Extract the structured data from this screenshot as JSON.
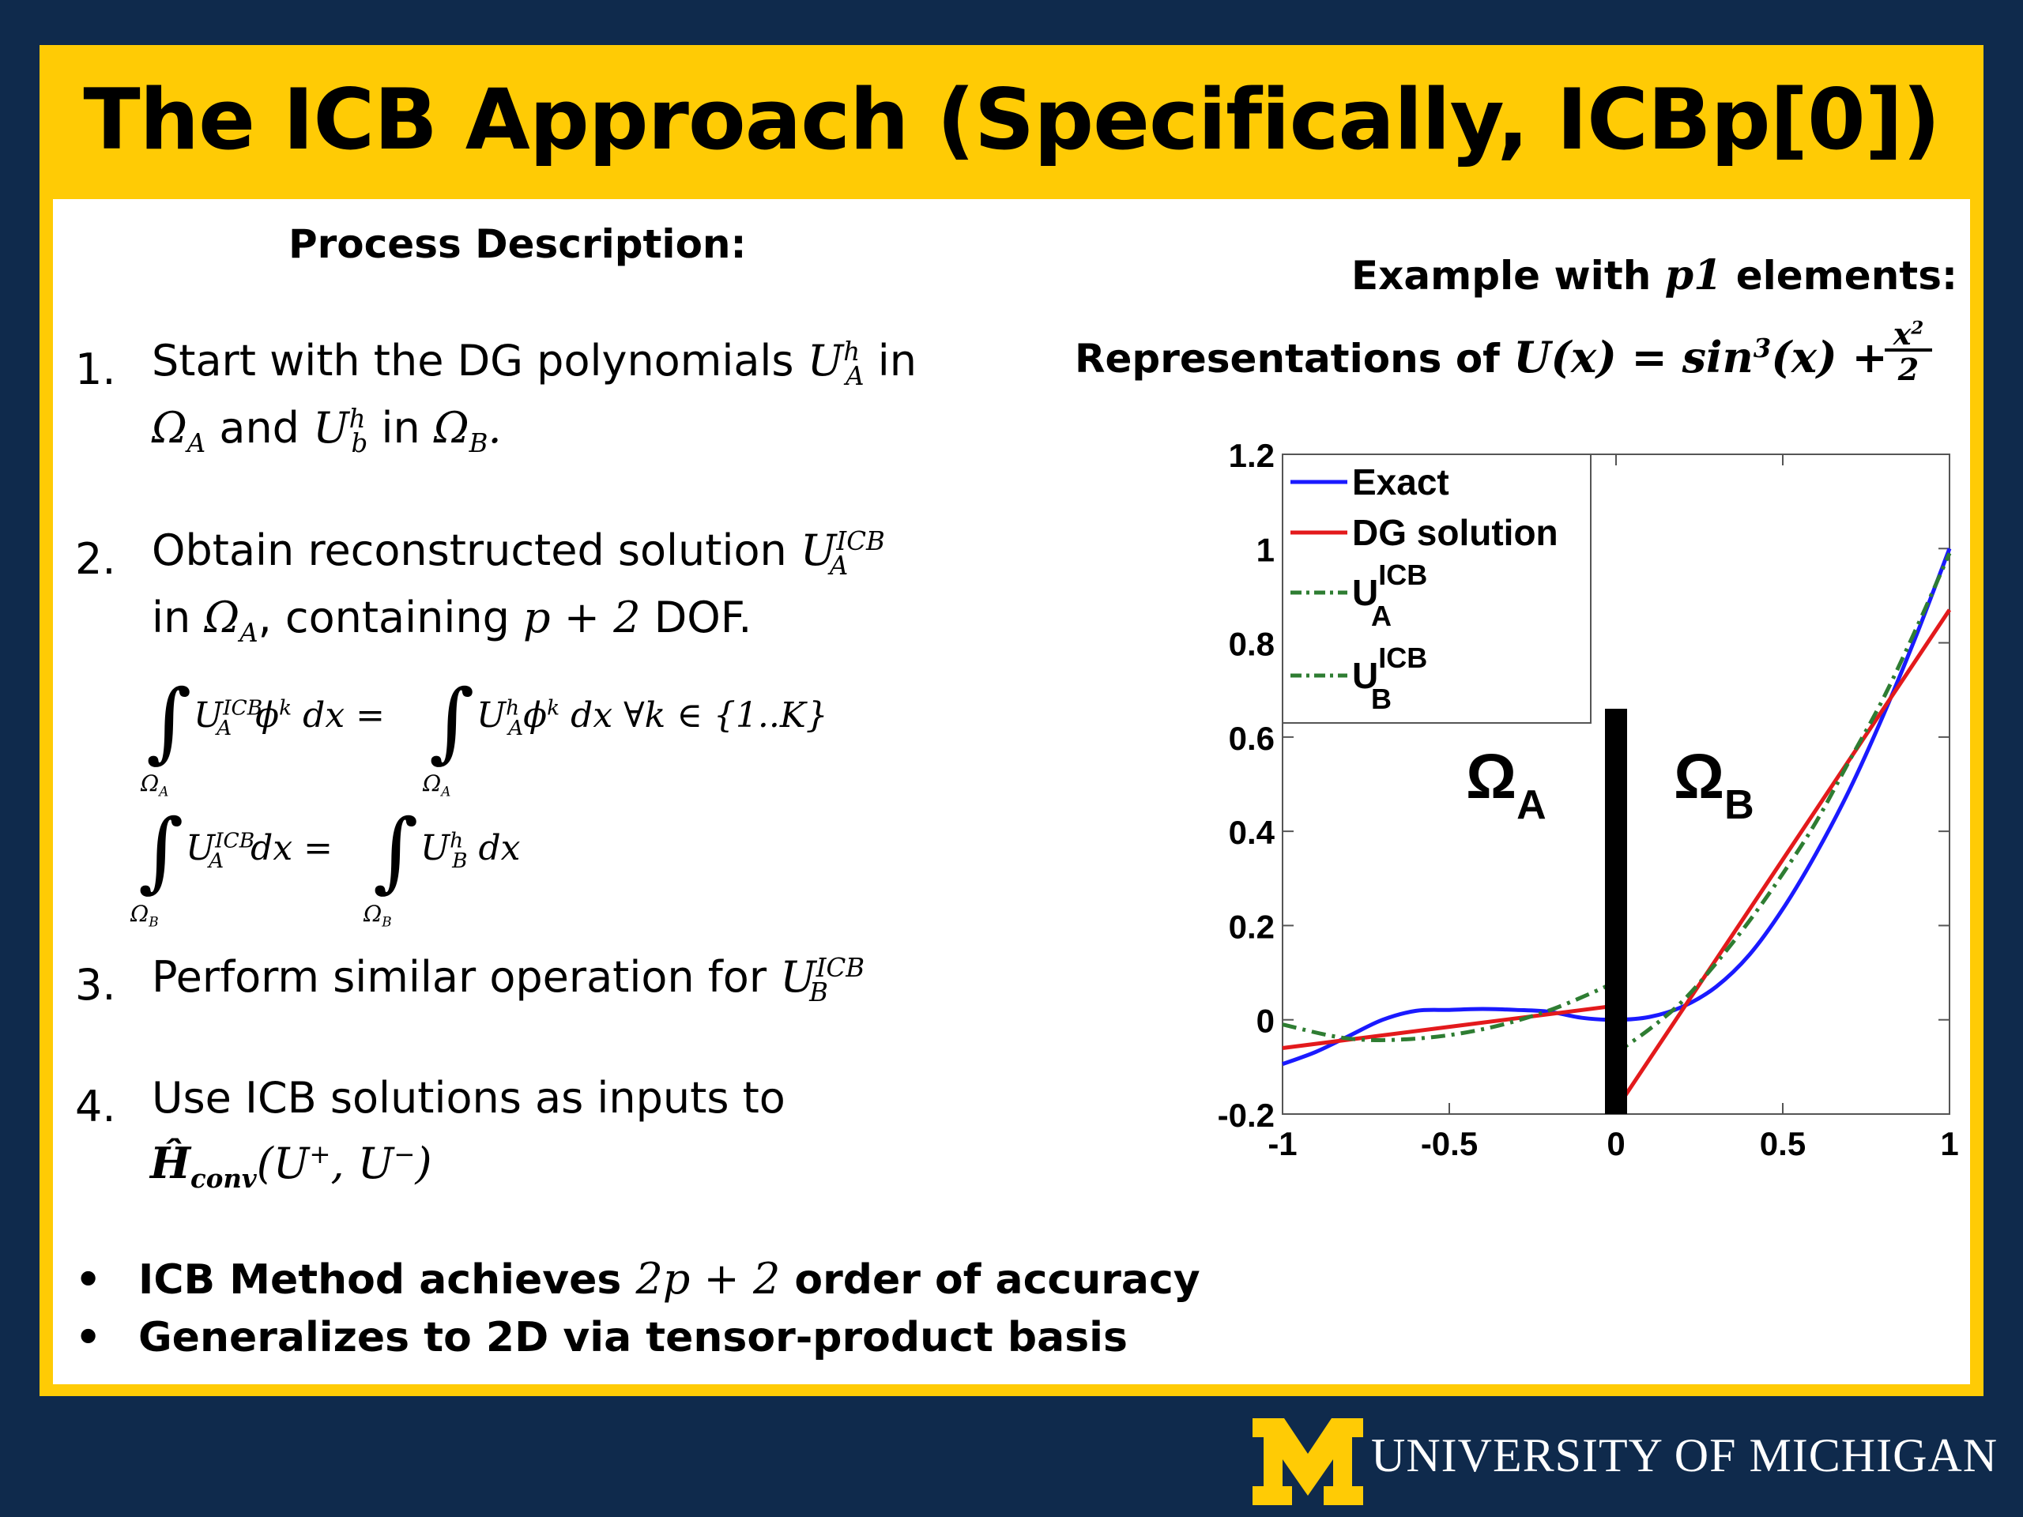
{
  "title": "The ICB Approach (Specifically, ICBp[0])",
  "left": {
    "heading": "Process Description:",
    "steps": [
      {
        "num": "1.",
        "line1": "Start with the DG polynomials",
        "line1_tail": "in",
        "line2_mid": "and",
        "line2_tail": "in"
      },
      {
        "num": "2.",
        "line1": "Obtain reconstructed solution",
        "line2_head": "in",
        "line2_mid": ", containing",
        "line2_tail": "DOF."
      },
      {
        "num": "3.",
        "line1": "Perform similar operation for"
      },
      {
        "num": "4.",
        "line1": "Use ICB solutions as inputs to"
      }
    ],
    "math": {
      "s1_a": "U",
      "s1_a_sup": "h",
      "s1_a_sub": "A",
      "s1_b": "Ω",
      "s1_b_sub": "A",
      "s1_c": "U",
      "s1_c_sup": "h",
      "s1_c_sub": "b",
      "s1_d": "Ω",
      "s1_d_sub": "B",
      "s1_end": ".",
      "s2_a": "U",
      "s2_a_sup": "ICB",
      "s2_a_sub": "A",
      "s2_b": "Ω",
      "s2_b_sub": "A",
      "s2_c": "p + 2",
      "eq1_lhs": "U",
      "eq1_lhs_sup": "ICB",
      "eq1_lhs_sub": "A",
      "eq1_phi": "ϕ",
      "eq1_phi_sup": "k",
      "eq1_dx": "dx =",
      "eq1_rhs": "U",
      "eq1_rhs_sup": "h",
      "eq1_rhs_sub": "A",
      "eq1_rhs_tail": "dx   ∀k ∈ {1..K}",
      "eq1_lim": "Ω",
      "eq1_lim_sub": "A",
      "eq2_lhs": "U",
      "eq2_lhs_sup": "ICB",
      "eq2_lhs_sub": "A",
      "eq2_dx": "dx =",
      "eq2_rhs": "U",
      "eq2_rhs_sup": "h",
      "eq2_rhs_sub": "B",
      "eq2_rhs_tail": "dx",
      "eq2_lim": "Ω",
      "eq2_lim_sub": "B",
      "s3_a": "U",
      "s3_a_sup": "ICB",
      "s3_a_sub": "B",
      "s4_H": "Ĥ",
      "s4_H_sub": "conv",
      "s4_args": "(U",
      "s4_plus": "+",
      "s4_comma": ", U",
      "s4_minus": "−",
      "s4_close": ")",
      "integral": "∫"
    },
    "bullets": [
      {
        "dot": "•",
        "pre": "ICB Method achieves",
        "math": "2p + 2",
        "post": "order of accuracy"
      },
      {
        "dot": "•",
        "pre": "Generalizes to 2D via tensor-product basis"
      }
    ]
  },
  "right": {
    "example_pre": "Example with",
    "example_math": "p1",
    "example_post": "elements:",
    "repr_pre": "Representations of",
    "repr_math": "U(x) = sin",
    "repr_sup": "3",
    "repr_tail": "(x) +",
    "frac_num": "x",
    "frac_num_sup": "2",
    "frac_den": "2"
  },
  "chart_data": {
    "type": "line",
    "xlim": [
      -1,
      1
    ],
    "ylim": [
      -0.2,
      1.2
    ],
    "xticks": [
      "-1",
      "-0.5",
      "0",
      "0.5",
      "1"
    ],
    "yticks": [
      "-0.2",
      "0",
      "0.2",
      "0.4",
      "0.6",
      "0.8",
      "1",
      "1.2"
    ],
    "legend_position": "top-left",
    "region_labels": [
      {
        "main": "Ω",
        "sub": "A"
      },
      {
        "main": "Ω",
        "sub": "B"
      }
    ],
    "divider_x": 0,
    "series": [
      {
        "name": "Exact",
        "legend_main": "Exact",
        "legend_sup": "",
        "legend_sub": "",
        "color": "#1a1aff",
        "dash": "solid",
        "x": [
          -1,
          -0.9,
          -0.8,
          -0.7,
          -0.6,
          -0.5,
          -0.4,
          -0.3,
          -0.2,
          -0.1,
          0,
          0.1,
          0.2,
          0.3,
          0.4,
          0.5,
          0.6,
          0.7,
          0.8,
          0.9,
          1
        ],
        "y": [
          -0.094,
          -0.068,
          -0.034,
          0.0,
          0.019,
          0.021,
          0.023,
          0.021,
          0.017,
          0.004,
          0.0,
          0.006,
          0.028,
          0.07,
          0.138,
          0.235,
          0.353,
          0.488,
          0.644,
          0.815,
          1.0
        ]
      },
      {
        "name": "DG solution",
        "legend_main": "DG solution",
        "legend_sup": "",
        "legend_sub": "",
        "color": "#e31a1c",
        "dash": "solid",
        "segments": [
          {
            "x": [
              -1,
              0
            ],
            "y": [
              -0.06,
              0.03
            ]
          },
          {
            "x": [
              0,
              1
            ],
            "y": [
              -0.19,
              0.87
            ]
          }
        ]
      },
      {
        "name": "UA ICB",
        "legend_main": "U",
        "legend_sup": "ICB",
        "legend_sub": "A",
        "color": "#2e7d32",
        "dash": "dashdot",
        "x": [
          -1,
          -0.8,
          -0.6,
          -0.4,
          -0.2,
          0
        ],
        "y": [
          -0.01,
          -0.04,
          -0.04,
          -0.02,
          0.02,
          0.08
        ]
      },
      {
        "name": "UB ICB",
        "legend_main": "U",
        "legend_sup": "ICB",
        "legend_sub": "B",
        "color": "#2e7d32",
        "dash": "dashdot",
        "x": [
          0,
          0.1,
          0.2,
          0.3,
          0.4,
          0.5,
          0.6,
          0.7,
          0.8,
          0.9,
          1
        ],
        "y": [
          -0.07,
          -0.02,
          0.04,
          0.12,
          0.21,
          0.31,
          0.42,
          0.55,
          0.68,
          0.83,
          0.99
        ]
      }
    ]
  },
  "footer": {
    "logo_letter": "M",
    "text": "UNIVERSITY OF MICHIGAN",
    "logo_color": "#ffcb05"
  }
}
